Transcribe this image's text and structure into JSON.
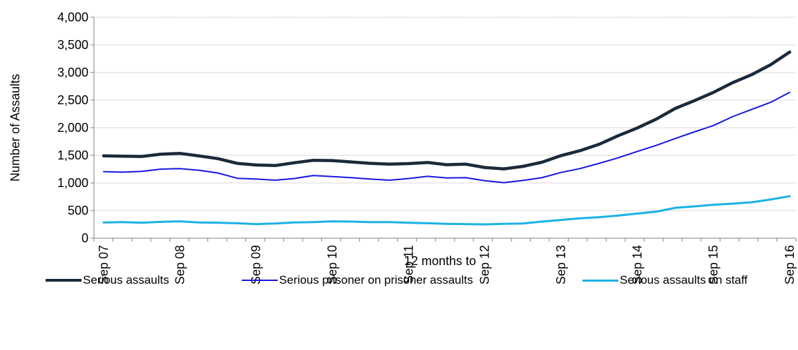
{
  "chart_data": {
    "type": "line",
    "xlabel": "12 months to",
    "ylabel": "Number of Assaults",
    "ylim": [
      0,
      4000
    ],
    "y_ticks": [
      0,
      500,
      1000,
      1500,
      2000,
      2500,
      3000,
      3500,
      4000
    ],
    "y_tick_labels": [
      "0",
      "500",
      "1,000",
      "1,500",
      "2,000",
      "2,500",
      "3,000",
      "3,500",
      "4,000"
    ],
    "x_tick_labels": [
      "Sep 07",
      "Sep 08",
      "Sep 09",
      "Sep 10",
      "Sep 11",
      "Sep 12",
      "Sep 13",
      "Sep 14",
      "Sep 15",
      "Sep 16"
    ],
    "x_tick_every": 4,
    "grid": true,
    "legend_position": "bottom",
    "series": [
      {
        "name": "Serious assaults",
        "color": "#1b2a3a",
        "values": [
          1490,
          1485,
          1480,
          1520,
          1535,
          1490,
          1440,
          1355,
          1325,
          1315,
          1365,
          1410,
          1405,
          1380,
          1355,
          1340,
          1350,
          1370,
          1330,
          1340,
          1280,
          1255,
          1300,
          1375,
          1495,
          1585,
          1700,
          1855,
          1995,
          2155,
          2350,
          2490,
          2640,
          2815,
          2960,
          3140,
          3370
        ]
      },
      {
        "name": "Serious prisoner on prisoner assaults",
        "color": "#1515e0",
        "values": [
          1205,
          1195,
          1210,
          1250,
          1260,
          1230,
          1180,
          1085,
          1070,
          1050,
          1080,
          1135,
          1115,
          1095,
          1070,
          1050,
          1080,
          1120,
          1090,
          1095,
          1040,
          1005,
          1045,
          1095,
          1190,
          1260,
          1355,
          1455,
          1570,
          1680,
          1805,
          1925,
          2040,
          2200,
          2330,
          2460,
          2640
        ]
      },
      {
        "name": "Serious assaults on staff",
        "color": "#1ab1e6",
        "values": [
          285,
          290,
          280,
          295,
          305,
          285,
          280,
          270,
          255,
          265,
          285,
          290,
          305,
          300,
          290,
          290,
          280,
          270,
          260,
          255,
          250,
          260,
          265,
          300,
          330,
          360,
          380,
          410,
          445,
          480,
          550,
          575,
          605,
          625,
          650,
          700,
          760
        ]
      }
    ]
  }
}
